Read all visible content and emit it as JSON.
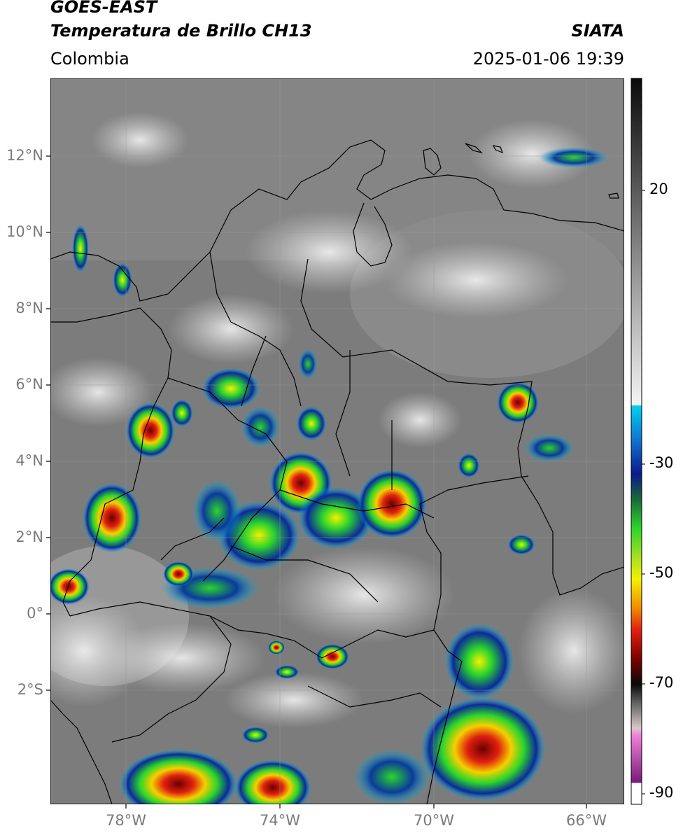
{
  "header": {
    "satellite": "GOES-EAST",
    "product": "Temperatura de Brillo CH13",
    "region": "Colombia",
    "org": "SIATA",
    "datetime": "2025-01-06 19:39"
  },
  "map": {
    "lat_ticks": [
      "12°N",
      "10°N",
      "8°N",
      "6°N",
      "4°N",
      "2°N",
      "0°",
      "2°S"
    ],
    "lon_ticks": [
      "78°W",
      "74°W",
      "70°W",
      "66°W"
    ],
    "grid": true,
    "colormap": "brightness temperature (°C)"
  },
  "colorbar": {
    "ticks": [
      "20",
      "-30",
      "-50",
      "-70",
      "-90"
    ],
    "range": [
      -92,
      33
    ],
    "colors": {
      "warm_gray_top": "#1a1a1a",
      "warm_gray_bottom": "#f0f0f0",
      "cyan": "#00c8f0",
      "blue": "#102a9a",
      "green": "#2bd62b",
      "yellow": "#f5f000",
      "orange": "#f08a00",
      "red": "#d81010",
      "dark_red": "#6a0000",
      "black": "#0a0a0a",
      "pink": "#e070d0",
      "purple": "#8a1a8a"
    }
  }
}
